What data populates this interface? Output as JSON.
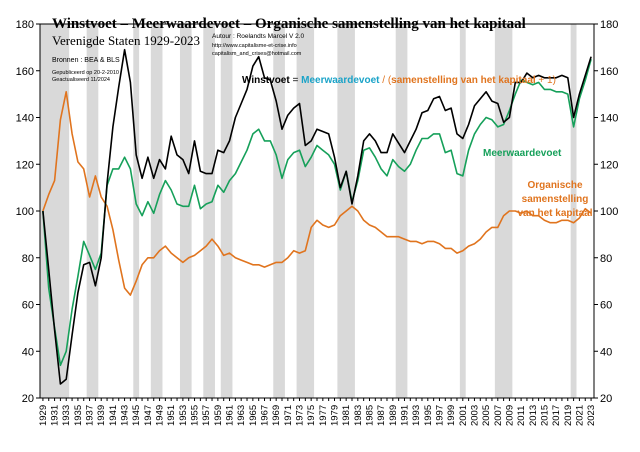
{
  "chart_data": {
    "type": "line",
    "title": "Winstvoet – Meerwaardevoet – Organische samenstelling van het kapitaal",
    "subtitle": "Verenigde Staten 1929-2023",
    "author": [
      "Autour : Roelandts Marcel  V 2.0",
      "http://www.capitalisme-et-crise.info",
      "capitalism_and_crises@hotmail.com"
    ],
    "sources": "Bronnen : BEA & BLS",
    "dates": [
      "Gepubliceerd op 20-2-2010",
      "Geactualiseerd 11/2024"
    ],
    "formula": {
      "a": "Winstvoet",
      "eq": " = ",
      "b": "Meerwaardevoet",
      "slash": " / (",
      "c": "samenstelling van het kapitaal",
      "end": " + 1)"
    },
    "labels": {
      "meerwaarde": "Meerwaardevoet",
      "organisch": [
        "Organische",
        "samenstelling",
        "van het kapitaal"
      ]
    },
    "colors": {
      "winst": "#000000",
      "meerwaarde": "#16a05a",
      "organisch": "#e0741e",
      "recession": "#d9d9d9",
      "formula_b": "#1aa3c8"
    },
    "ylim": [
      20,
      180
    ],
    "yticks": [
      20,
      40,
      60,
      80,
      100,
      120,
      140,
      160,
      180
    ],
    "xlim": [
      1929,
      2023
    ],
    "xtick_labels": [
      "1929",
      "1931",
      "1933",
      "1935",
      "1937",
      "1939",
      "1941",
      "1943",
      "1945",
      "1947",
      "1949",
      "1951",
      "1953",
      "1955",
      "1957",
      "1959",
      "1961",
      "1963",
      "1965",
      "1967",
      "1969",
      "1971",
      "1973",
      "1975",
      "1977",
      "1979",
      "1981",
      "1983",
      "1985",
      "1987",
      "1989",
      "1991",
      "1993",
      "1995",
      "1997",
      "1999",
      "2001",
      "2003",
      "2005",
      "2007",
      "2009",
      "2011",
      "2013",
      "2015",
      "2017",
      "2019",
      "2021",
      "2023"
    ],
    "recessions": [
      [
        1929,
        1933
      ],
      [
        1937,
        1938
      ],
      [
        1945,
        1945
      ],
      [
        1948,
        1949
      ],
      [
        1953,
        1954
      ],
      [
        1957,
        1958
      ],
      [
        1960,
        1961
      ],
      [
        1969,
        1970
      ],
      [
        1973,
        1975
      ],
      [
        1980,
        1982
      ],
      [
        1990,
        1991
      ],
      [
        2001,
        2001
      ],
      [
        2007,
        2009
      ],
      [
        2020,
        2020
      ]
    ],
    "series": [
      {
        "name": "Winstvoet",
        "x": [
          1929,
          1930,
          1931,
          1932,
          1933,
          1934,
          1935,
          1936,
          1937,
          1938,
          1939,
          1940,
          1941,
          1942,
          1943,
          1944,
          1945,
          1946,
          1947,
          1948,
          1949,
          1950,
          1951,
          1952,
          1953,
          1954,
          1955,
          1956,
          1957,
          1958,
          1959,
          1960,
          1961,
          1962,
          1963,
          1964,
          1965,
          1966,
          1967,
          1968,
          1969,
          1970,
          1971,
          1972,
          1973,
          1974,
          1975,
          1976,
          1977,
          1978,
          1979,
          1980,
          1981,
          1982,
          1983,
          1984,
          1985,
          1986,
          1987,
          1988,
          1989,
          1990,
          1991,
          1992,
          1993,
          1994,
          1995,
          1996,
          1997,
          1998,
          1999,
          2000,
          2001,
          2002,
          2003,
          2004,
          2005,
          2006,
          2007,
          2008,
          2009,
          2010,
          2011,
          2012,
          2013,
          2014,
          2015,
          2016,
          2017,
          2018,
          2019,
          2020,
          2021,
          2022,
          2023
        ],
        "values": [
          100,
          75,
          49,
          26,
          28,
          47,
          65,
          77,
          78,
          68,
          80,
          112,
          136,
          153,
          169,
          155,
          124,
          114,
          123,
          114,
          122,
          118,
          132,
          124,
          122,
          116,
          130,
          117,
          116,
          116,
          126,
          125,
          130,
          140,
          146,
          152,
          162,
          166,
          157,
          156,
          147,
          135,
          141,
          144,
          146,
          128,
          130,
          135,
          134,
          133,
          123,
          110,
          117,
          103,
          115,
          130,
          133,
          130,
          125,
          125,
          133,
          129,
          125,
          130,
          135,
          142,
          143,
          148,
          149,
          143,
          144,
          133,
          131,
          137,
          145,
          148,
          151,
          147,
          146,
          138,
          140,
          155,
          155,
          159,
          157,
          158,
          157,
          157,
          157,
          158,
          157,
          140,
          150,
          158,
          166
        ]
      },
      {
        "name": "Meerwaardevoet",
        "x": [
          1929,
          1930,
          1931,
          1932,
          1933,
          1934,
          1935,
          1936,
          1937,
          1938,
          1939,
          1940,
          1941,
          1942,
          1943,
          1944,
          1945,
          1946,
          1947,
          1948,
          1949,
          1950,
          1951,
          1952,
          1953,
          1954,
          1955,
          1956,
          1957,
          1958,
          1959,
          1960,
          1961,
          1962,
          1963,
          1964,
          1965,
          1966,
          1967,
          1968,
          1969,
          1970,
          1971,
          1972,
          1973,
          1974,
          1975,
          1976,
          1977,
          1978,
          1979,
          1980,
          1981,
          1982,
          1983,
          1984,
          1985,
          1986,
          1987,
          1988,
          1989,
          1990,
          1991,
          1992,
          1993,
          1994,
          1995,
          1996,
          1997,
          1998,
          1999,
          2000,
          2001,
          2002,
          2003,
          2004,
          2005,
          2006,
          2007,
          2008,
          2009,
          2010,
          2011,
          2012,
          2013,
          2014,
          2015,
          2016,
          2017,
          2018,
          2019,
          2020,
          2021,
          2022,
          2023
        ],
        "values": [
          100,
          67,
          50,
          34,
          40,
          58,
          72,
          87,
          81,
          75,
          82,
          111,
          118,
          118,
          123,
          118,
          103,
          98,
          104,
          99,
          107,
          113,
          109,
          103,
          102,
          102,
          111,
          101,
          103,
          104,
          111,
          108,
          113,
          116,
          121,
          126,
          133,
          135,
          130,
          130,
          124,
          114,
          122,
          125,
          126,
          119,
          123,
          128,
          126,
          124,
          120,
          109,
          117,
          104,
          113,
          126,
          127,
          123,
          118,
          115,
          122,
          119,
          117,
          120,
          126,
          131,
          131,
          133,
          133,
          125,
          126,
          116,
          115,
          126,
          133,
          137,
          140,
          139,
          136,
          137,
          143,
          150,
          156,
          155,
          154,
          155,
          152,
          152,
          151,
          151,
          150,
          136,
          148,
          156,
          165
        ]
      },
      {
        "name": "Organische samenstelling van het kapitaal",
        "x": [
          1929,
          1930,
          1931,
          1932,
          1933,
          1934,
          1935,
          1936,
          1937,
          1938,
          1939,
          1940,
          1941,
          1942,
          1943,
          1944,
          1945,
          1946,
          1947,
          1948,
          1949,
          1950,
          1951,
          1952,
          1953,
          1954,
          1955,
          1956,
          1957,
          1958,
          1959,
          1960,
          1961,
          1962,
          1963,
          1964,
          1965,
          1966,
          1967,
          1968,
          1969,
          1970,
          1971,
          1972,
          1973,
          1974,
          1975,
          1976,
          1977,
          1978,
          1979,
          1980,
          1981,
          1982,
          1983,
          1984,
          1985,
          1986,
          1987,
          1988,
          1989,
          1990,
          1991,
          1992,
          1993,
          1994,
          1995,
          1996,
          1997,
          1998,
          1999,
          2000,
          2001,
          2002,
          2003,
          2004,
          2005,
          2006,
          2007,
          2008,
          2009,
          2010,
          2011,
          2012,
          2013,
          2014,
          2015,
          2016,
          2017,
          2018,
          2019,
          2020,
          2021,
          2022,
          2023
        ],
        "values": [
          100,
          107,
          113,
          139,
          151,
          133,
          121,
          118,
          106,
          115,
          106,
          102,
          92,
          79,
          67,
          64,
          70,
          77,
          80,
          80,
          83,
          85,
          82,
          80,
          78,
          80,
          81,
          83,
          85,
          88,
          85,
          81,
          82,
          80,
          79,
          78,
          77,
          77,
          76,
          77,
          78,
          78,
          80,
          83,
          82,
          83,
          93,
          96,
          94,
          93,
          94,
          98,
          100,
          102,
          100,
          96,
          94,
          93,
          91,
          89,
          89,
          89,
          88,
          87,
          87,
          86,
          87,
          87,
          86,
          84,
          84,
          82,
          83,
          85,
          86,
          88,
          91,
          93,
          93,
          98,
          100,
          100,
          99,
          100,
          98,
          98,
          96,
          95,
          95,
          96,
          96,
          95,
          97,
          101,
          99
        ]
      }
    ]
  }
}
